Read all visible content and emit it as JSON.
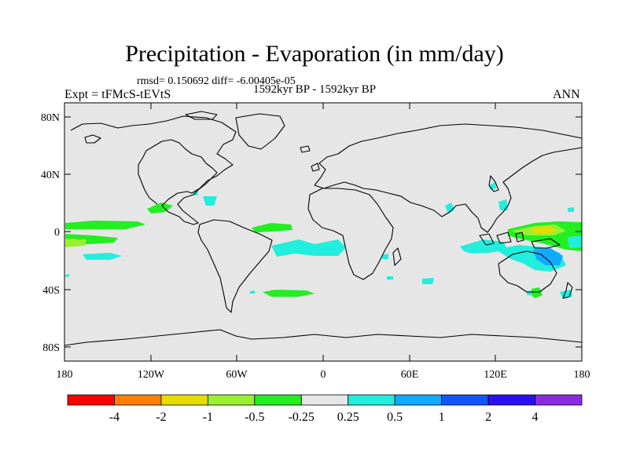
{
  "title": "Precipitation - Evaporation (in mm/day)",
  "stats": "rmsd= 0.150692 diff= -6.00405e-05",
  "period": "1592kyr BP - 1592kyr BP",
  "experiment": "Expt = tFMcS-tEVtS",
  "season": "ANN",
  "lat_ticks": [
    "80N",
    "40N",
    "0",
    "40S",
    "80S"
  ],
  "lon_ticks": [
    "180",
    "120W",
    "60W",
    "0",
    "60E",
    "120E",
    "180"
  ],
  "colorbar": {
    "labels": [
      "-4",
      "-2",
      "-1",
      "-0.5",
      "-0.25",
      "0.25",
      "0.5",
      "1",
      "2",
      "4"
    ],
    "colors": [
      "#ff0000",
      "#ff8000",
      "#e6dc00",
      "#99f031",
      "#22ee22",
      "#e6e6e6",
      "#22eede",
      "#10aaff",
      "#1155ff",
      "#2a10f0",
      "#8a2be2"
    ]
  },
  "colors": {
    "ocean_background": "#e6e6e6",
    "coastline": "#000000"
  }
}
